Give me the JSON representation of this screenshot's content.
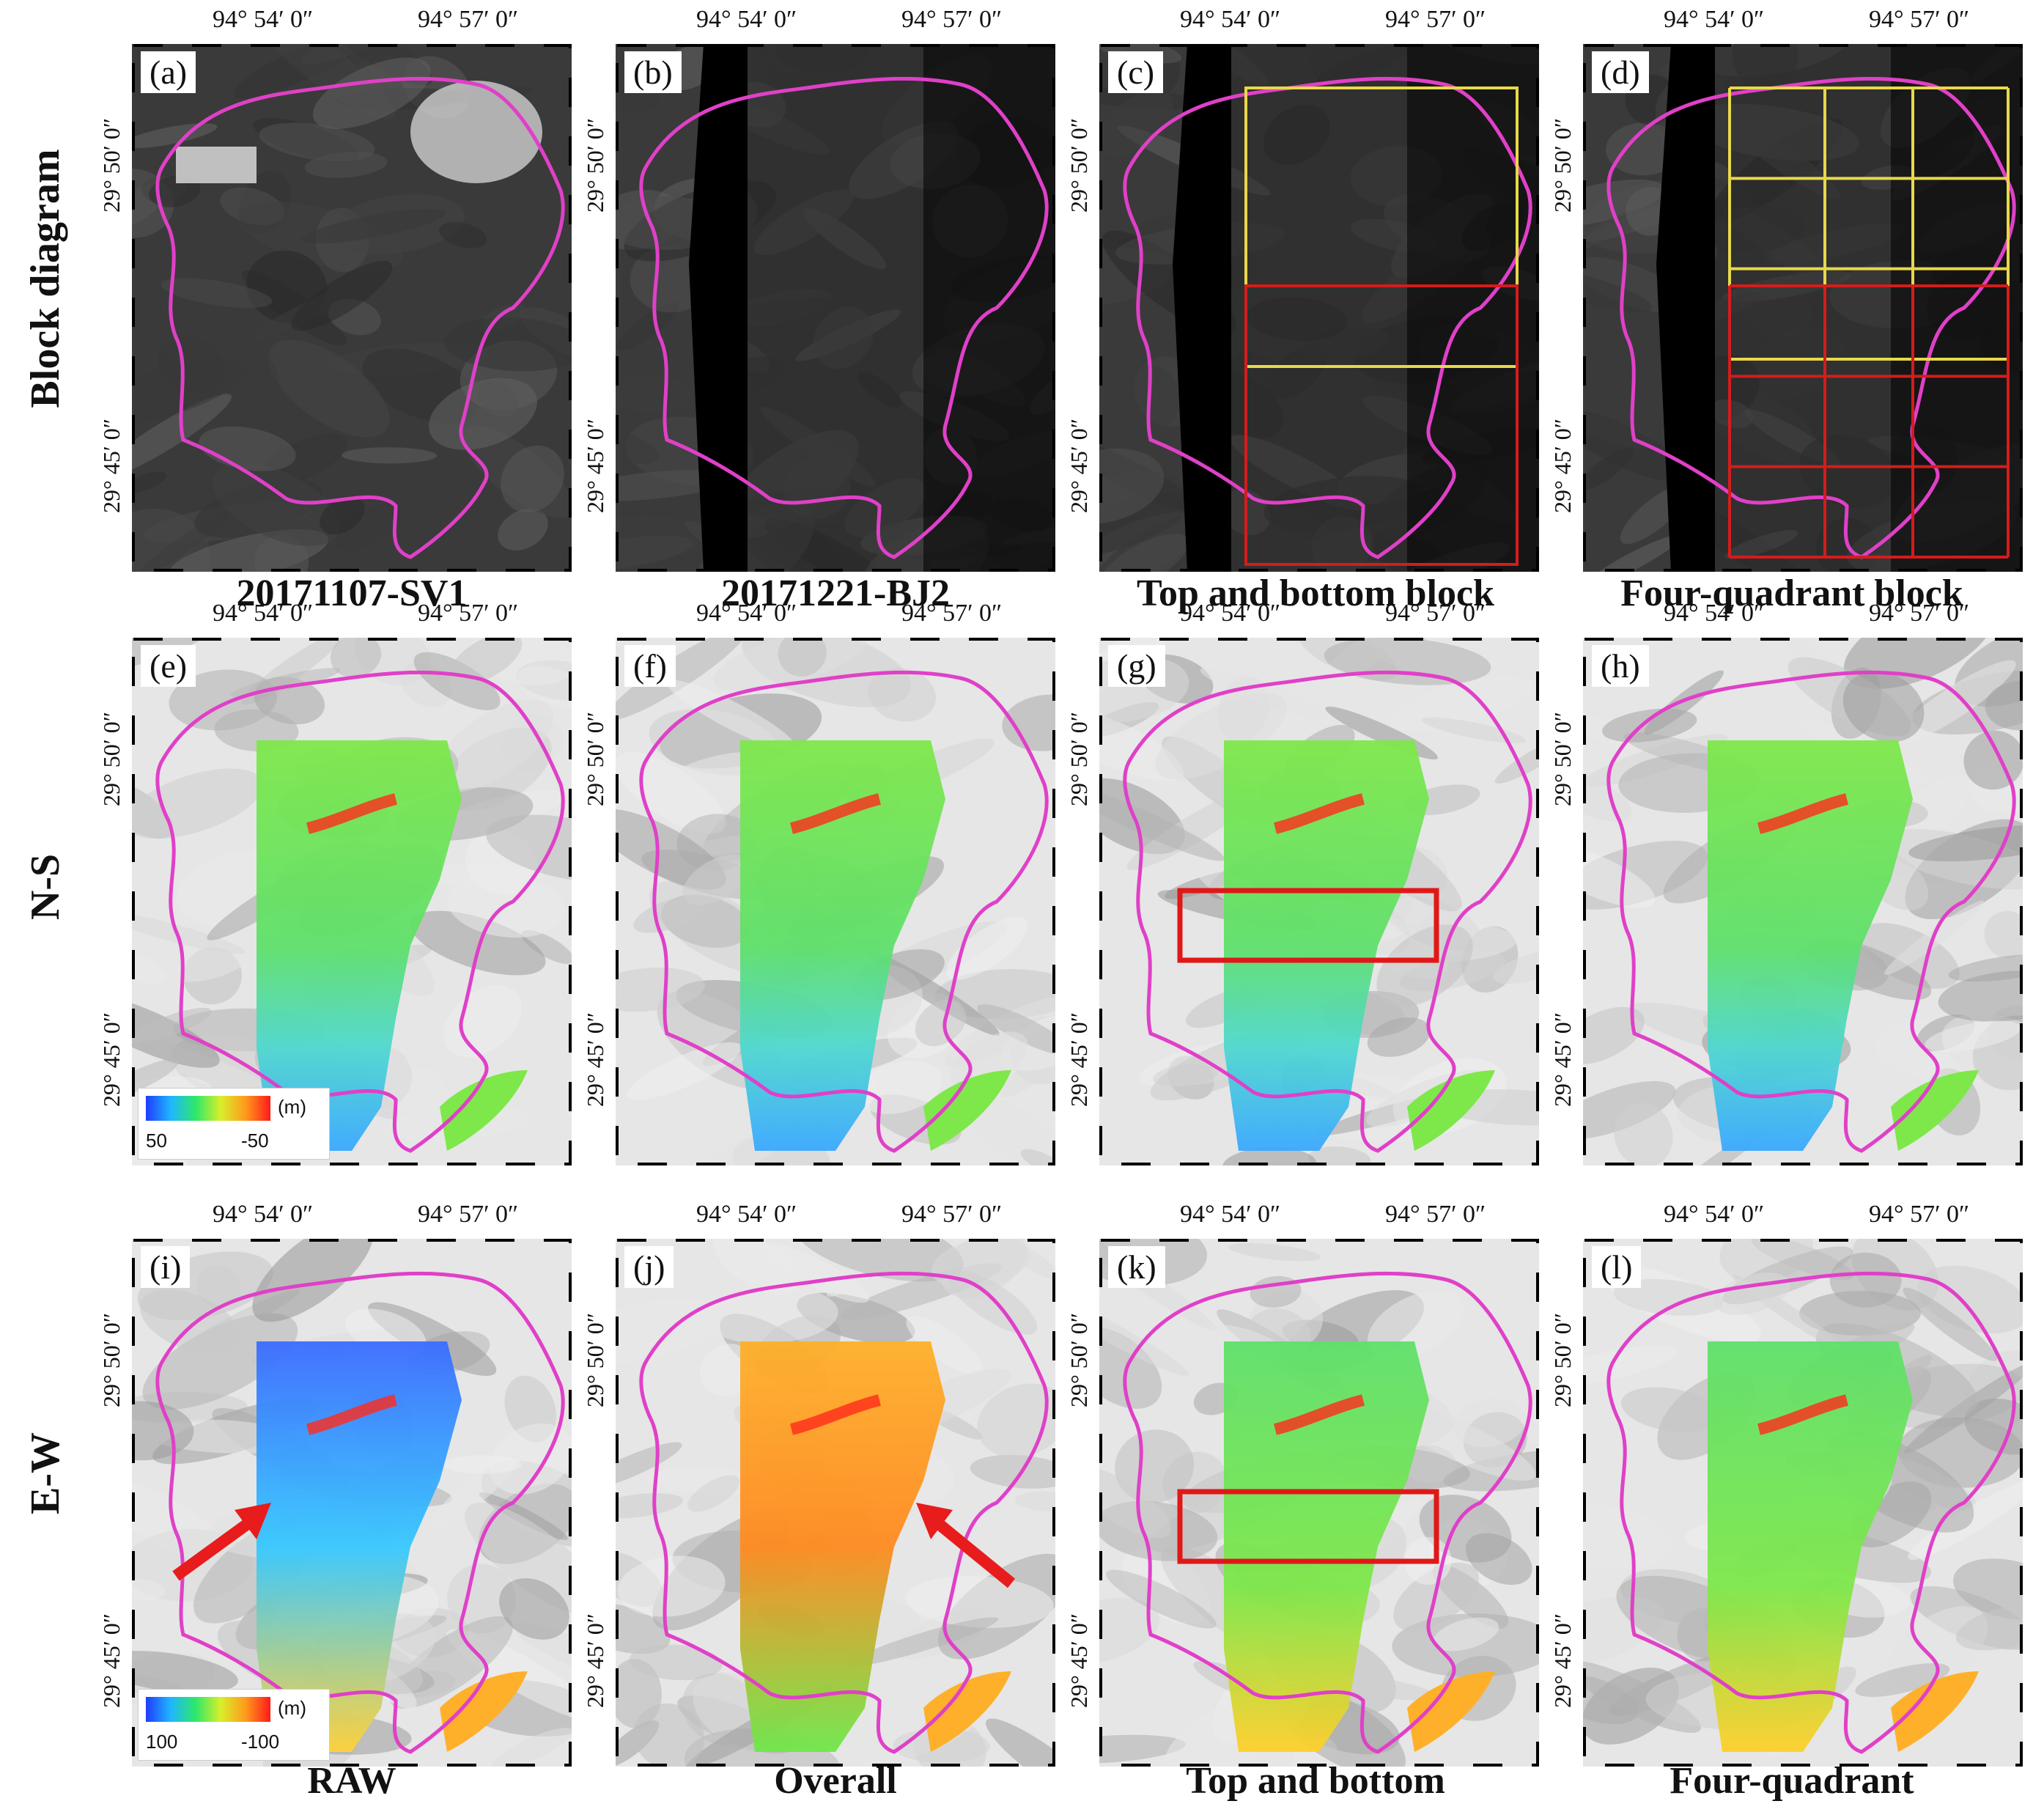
{
  "row_labels": [
    "Block diagram",
    "N-S",
    "E-W"
  ],
  "captions": {
    "row1": [
      "20171107-SV1",
      "20171221-BJ2",
      "Top and bottom block",
      "Four-quadrant block"
    ],
    "row3": [
      "RAW",
      "Overall",
      "Top and bottom",
      "Four-quadrant"
    ]
  },
  "panel_labels": [
    "(a)",
    "(b)",
    "(c)",
    "(d)",
    "(e)",
    "(f)",
    "(g)",
    "(h)",
    "(i)",
    "(j)",
    "(k)",
    "(l)"
  ],
  "lon_ticks": [
    "94°  54′ 0″",
    "94°  57′ 0″"
  ],
  "lat_ticks": [
    "29°  50′ 0″",
    "29°  45′ 0″"
  ],
  "legends": {
    "ns": {
      "unit": "(m)",
      "low": "50",
      "high": "-50"
    },
    "ew": {
      "unit": "(m)",
      "low": "100",
      "high": "-100"
    }
  },
  "colors": {
    "boundary": "#e040c8",
    "block_top": "#e8d84a",
    "block_bottom": "#d41c1c",
    "highlight_box": "#e01818",
    "arrow": "#e81c1c"
  }
}
